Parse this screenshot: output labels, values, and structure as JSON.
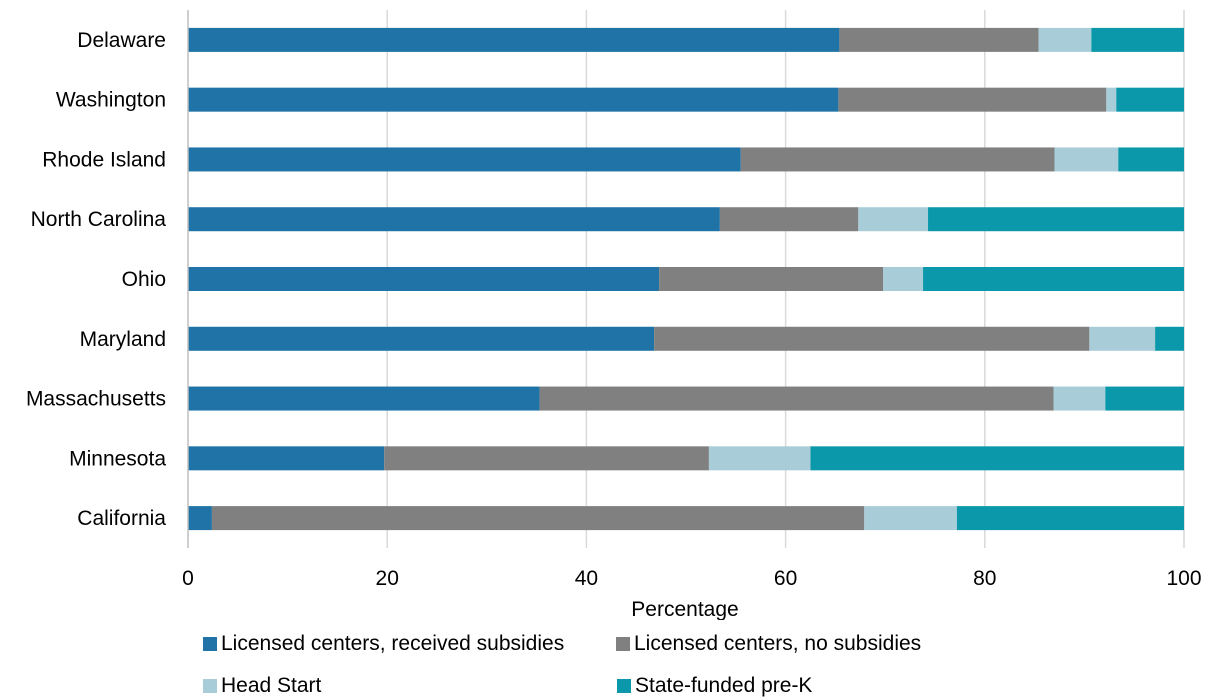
{
  "chart_data": {
    "type": "bar",
    "orientation": "horizontal",
    "stacked": true,
    "categories": [
      "Delaware",
      "Washington",
      "Rhode Island",
      "North Carolina",
      "Ohio",
      "Maryland",
      "Massachusetts",
      "Minnesota",
      "California"
    ],
    "series": [
      {
        "name": "Licensed centers, received subsidies",
        "color": "#1f73a6",
        "values": [
          65.4,
          65.3,
          55.5,
          53.4,
          47.3,
          46.8,
          35.3,
          19.7,
          2.4
        ]
      },
      {
        "name": "Licensed centers, no subsidies",
        "color": "#808080",
        "values": [
          20.0,
          26.9,
          31.5,
          13.9,
          22.5,
          43.7,
          51.6,
          32.6,
          65.5
        ]
      },
      {
        "name": "Head Start",
        "color": "#a8cdd9",
        "values": [
          5.3,
          1.0,
          6.4,
          7.0,
          4.0,
          6.6,
          5.2,
          10.2,
          9.3
        ]
      },
      {
        "name": "State-funded pre-K",
        "color": "#0b98ab",
        "values": [
          9.3,
          6.8,
          6.6,
          25.7,
          26.2,
          2.9,
          7.9,
          37.5,
          22.8
        ]
      }
    ],
    "xlabel": "Percentage",
    "ylabel": "",
    "xlim": [
      0,
      100
    ],
    "xticks": [
      0,
      20,
      40,
      60,
      80,
      100
    ],
    "grid": "vertical",
    "legend_position": "bottom"
  }
}
